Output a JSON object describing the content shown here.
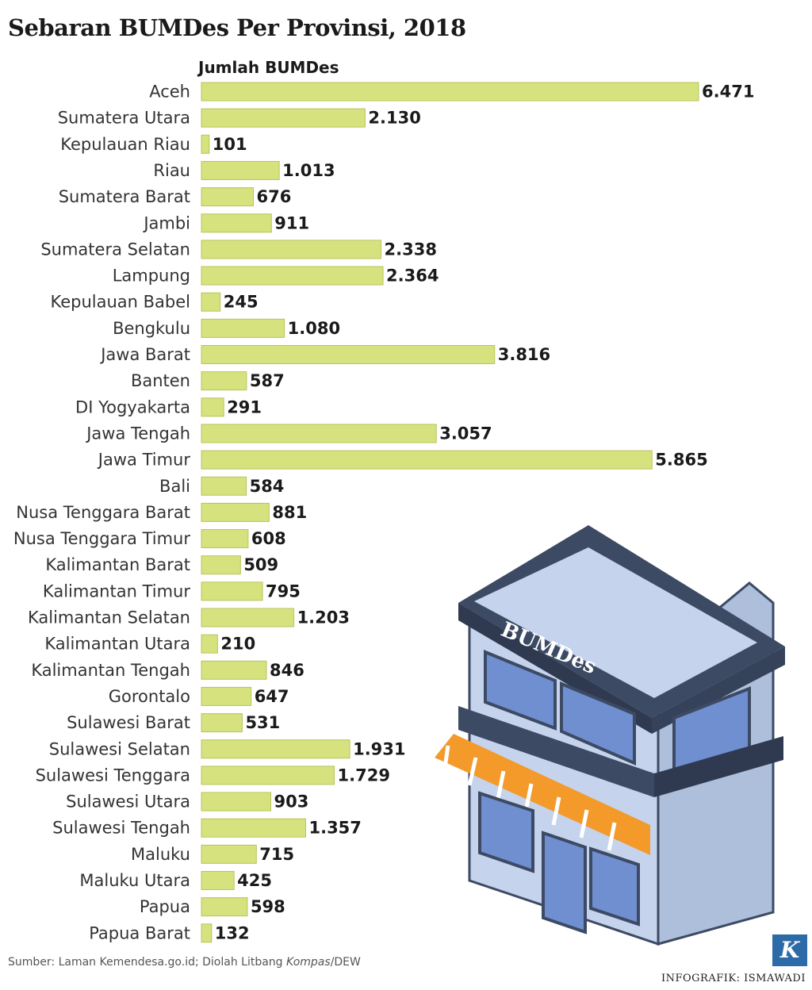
{
  "title": "Sebaran BUMDes Per Provinsi, 2018",
  "source_prefix": "Sumber: Laman Kemendesa.go.id; Diolah Litbang ",
  "source_italic": "Kompas",
  "source_suffix": "/DEW",
  "credit": "INFOGRAFIK: ISMAWADI",
  "logo_letter": "K",
  "illustration_sign": "BUMDes",
  "colors": {
    "bar": "#d6e27d",
    "bar_stroke": "#b8c45c",
    "building_dark": "#3d4a63",
    "building_light": "#c5d3ec",
    "window": "#6f8fd0",
    "awning": "#f39a2b"
  },
  "chart_data": {
    "type": "bar",
    "orientation": "horizontal",
    "title": "Sebaran BUMDes Per Provinsi, 2018",
    "value_header": "Jumlah BUMDes",
    "categories": [
      "Aceh",
      "Sumatera Utara",
      "Kepulauan Riau",
      "Riau",
      "Sumatera Barat",
      "Jambi",
      "Sumatera Selatan",
      "Lampung",
      "Kepulauan Babel",
      "Bengkulu",
      "Jawa Barat",
      "Banten",
      "DI Yogyakarta",
      "Jawa Tengah",
      "Jawa Timur",
      "Bali",
      "Nusa Tenggara Barat",
      "Nusa Tenggara Timur",
      "Kalimantan Barat",
      "Kalimantan Timur",
      "Kalimantan Selatan",
      "Kalimantan Utara",
      "Kalimantan Tengah",
      "Gorontalo",
      "Sulawesi Barat",
      "Sulawesi Selatan",
      "Sulawesi Tenggara",
      "Sulawesi Utara",
      "Sulawesi Tengah",
      "Maluku",
      "Maluku Utara",
      "Papua",
      "Papua Barat"
    ],
    "values": [
      6471,
      2130,
      101,
      1013,
      676,
      911,
      2338,
      2364,
      245,
      1080,
      3816,
      587,
      291,
      3057,
      5865,
      584,
      881,
      608,
      509,
      795,
      1203,
      210,
      846,
      647,
      531,
      1931,
      1729,
      903,
      1357,
      715,
      425,
      598,
      132
    ],
    "value_labels": [
      "6.471",
      "2.130",
      "101",
      "1.013",
      "676",
      "911",
      "2.338",
      "2.364",
      "245",
      "1.080",
      "3.816",
      "587",
      "291",
      "3.057",
      "5.865",
      "584",
      "881",
      "608",
      "509",
      "795",
      "1.203",
      "210",
      "846",
      "647",
      "531",
      "1.931",
      "1.729",
      "903",
      "1.357",
      "715",
      "425",
      "598",
      "132"
    ],
    "xlim": [
      0,
      6471
    ],
    "grid": false,
    "legend": "none"
  }
}
